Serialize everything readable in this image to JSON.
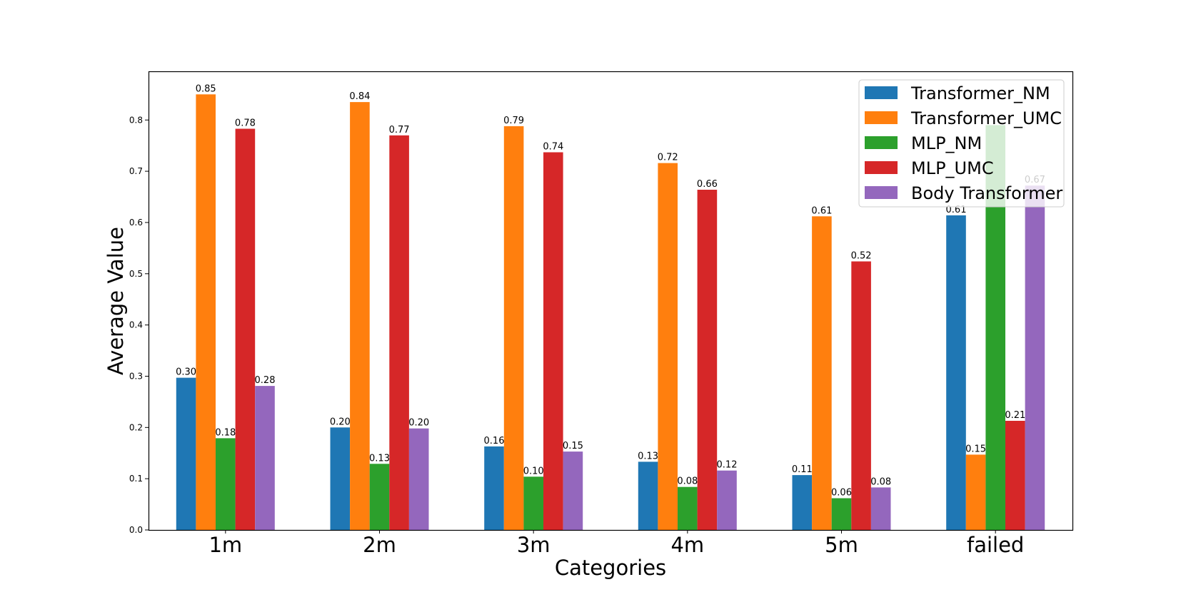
{
  "chart_data": {
    "type": "bar",
    "xlabel": "Categories",
    "ylabel": "Average Value",
    "categories": [
      "1m",
      "2m",
      "3m",
      "4m",
      "5m",
      "failed"
    ],
    "ylim": [
      0,
      0.895
    ],
    "yticks": [
      "0.0",
      "0.1",
      "0.2",
      "0.3",
      "0.4",
      "0.5",
      "0.6",
      "0.7",
      "0.8"
    ],
    "legend_position": "top-right",
    "grid": false,
    "series": [
      {
        "name": "Transformer_NM",
        "color": "#1f77b4",
        "values": [
          0.297,
          0.2,
          0.163,
          0.133,
          0.107,
          0.614
        ],
        "labels": [
          "0.30",
          "0.20",
          "0.16",
          "0.13",
          "0.11",
          "0.61"
        ]
      },
      {
        "name": "Transformer_UMC",
        "color": "#ff7f0e",
        "values": [
          0.85,
          0.835,
          0.788,
          0.716,
          0.612,
          0.147
        ],
        "labels": [
          "0.85",
          "0.84",
          "0.79",
          "0.72",
          "0.61",
          "0.15"
        ]
      },
      {
        "name": "MLP_NM",
        "color": "#2ca02c",
        "values": [
          0.179,
          0.129,
          0.104,
          0.084,
          0.062,
          0.79
        ],
        "labels": [
          "0.18",
          "0.13",
          "0.10",
          "0.08",
          "0.06",
          ""
        ]
      },
      {
        "name": "MLP_UMC",
        "color": "#d62728",
        "values": [
          0.783,
          0.77,
          0.737,
          0.664,
          0.524,
          0.213
        ],
        "labels": [
          "0.78",
          "0.77",
          "0.74",
          "0.66",
          "0.52",
          "0.21"
        ]
      },
      {
        "name": "Body Transformer",
        "color": "#9467bd",
        "values": [
          0.281,
          0.198,
          0.153,
          0.116,
          0.083,
          0.672
        ],
        "labels": [
          "0.28",
          "0.20",
          "0.15",
          "0.12",
          "0.08",
          "0.67"
        ]
      }
    ]
  }
}
